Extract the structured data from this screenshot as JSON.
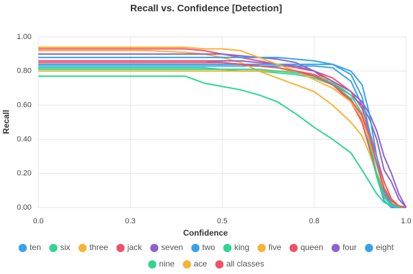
{
  "chart_data": {
    "type": "line",
    "title": "Recall vs. Confidence [Detection]",
    "x_label": "Confidence",
    "y_label": "Recall",
    "x": [
      0,
      0.1,
      0.2,
      0.3,
      0.4,
      0.45,
      0.5,
      0.55,
      0.6,
      0.65,
      0.7,
      0.75,
      0.8,
      0.85,
      0.88,
      0.9,
      0.92,
      0.94,
      0.96,
      0.98,
      1
    ],
    "xlim": [
      0,
      1
    ],
    "xticks": [
      {
        "value": 0,
        "label": "0.0"
      },
      {
        "value": 0.25,
        "label": "0.3"
      },
      0.5,
      {
        "value": 0.75,
        "label": "0.8"
      },
      {
        "value": 1,
        "label": "1.0"
      }
    ],
    "ylim": [
      0,
      1
    ],
    "yticks": [
      {
        "value": 0,
        "label": "0.00"
      },
      {
        "value": 0.2,
        "label": "0.20"
      },
      {
        "value": 0.4,
        "label": "0.40"
      },
      {
        "value": 0.6,
        "label": "0.60"
      },
      {
        "value": 0.8,
        "label": "0.80"
      },
      {
        "value": 1,
        "label": "1.00"
      }
    ],
    "grid": true,
    "legend": "bottom",
    "series": [
      {
        "name": "ten",
        "color": "#36a2eb",
        "values": [
          0.83,
          0.83,
          0.83,
          0.83,
          0.83,
          0.83,
          0.83,
          0.83,
          0.83,
          0.83,
          0.83,
          0.83,
          0.82,
          0.74,
          0.6,
          0.42,
          0.18,
          0.04,
          0,
          0,
          0
        ]
      },
      {
        "name": "six",
        "color": "#2ed68f",
        "values": [
          0.77,
          0.77,
          0.77,
          0.77,
          0.77,
          0.73,
          0.71,
          0.69,
          0.66,
          0.62,
          0.55,
          0.47,
          0.4,
          0.32,
          0.22,
          0.15,
          0.08,
          0.03,
          0.01,
          0,
          0
        ]
      },
      {
        "name": "three",
        "color": "#f9b233",
        "values": [
          0.92,
          0.92,
          0.92,
          0.92,
          0.91,
          0.9,
          0.88,
          0.85,
          0.8,
          0.76,
          0.72,
          0.68,
          0.6,
          0.5,
          0.42,
          0.32,
          0.2,
          0.1,
          0.03,
          0,
          0
        ]
      },
      {
        "name": "jack",
        "color": "#f2506a",
        "values": [
          0.93,
          0.93,
          0.93,
          0.93,
          0.93,
          0.92,
          0.9,
          0.88,
          0.86,
          0.84,
          0.82,
          0.8,
          0.76,
          0.68,
          0.58,
          0.45,
          0.3,
          0.15,
          0.05,
          0.01,
          0
        ]
      },
      {
        "name": "seven",
        "color": "#8c62d0",
        "values": [
          0.9,
          0.9,
          0.9,
          0.9,
          0.9,
          0.9,
          0.9,
          0.89,
          0.88,
          0.87,
          0.85,
          0.8,
          0.72,
          0.66,
          0.6,
          0.52,
          0.4,
          0.22,
          0.15,
          0.05,
          0
        ]
      },
      {
        "name": "two",
        "color": "#36a2eb",
        "values": [
          0.88,
          0.88,
          0.88,
          0.88,
          0.88,
          0.88,
          0.88,
          0.88,
          0.88,
          0.88,
          0.87,
          0.86,
          0.84,
          0.78,
          0.65,
          0.45,
          0.25,
          0.1,
          0.02,
          0,
          0
        ]
      },
      {
        "name": "king",
        "color": "#2ed68f",
        "values": [
          0.82,
          0.82,
          0.82,
          0.82,
          0.82,
          0.82,
          0.81,
          0.8,
          0.8,
          0.79,
          0.78,
          0.76,
          0.72,
          0.64,
          0.5,
          0.35,
          0.18,
          0.06,
          0.01,
          0,
          0
        ]
      },
      {
        "name": "five",
        "color": "#f9b233",
        "values": [
          0.8,
          0.8,
          0.8,
          0.8,
          0.8,
          0.8,
          0.8,
          0.8,
          0.8,
          0.8,
          0.8,
          0.78,
          0.74,
          0.66,
          0.55,
          0.4,
          0.25,
          0.1,
          0.02,
          0,
          0
        ]
      },
      {
        "name": "queen",
        "color": "#f2506a",
        "values": [
          0.85,
          0.85,
          0.85,
          0.85,
          0.85,
          0.85,
          0.85,
          0.84,
          0.83,
          0.82,
          0.8,
          0.78,
          0.72,
          0.62,
          0.5,
          0.35,
          0.2,
          0.08,
          0.02,
          0,
          0
        ]
      },
      {
        "name": "four",
        "color": "#8c62d0",
        "values": [
          0.86,
          0.86,
          0.86,
          0.86,
          0.86,
          0.86,
          0.86,
          0.86,
          0.85,
          0.84,
          0.83,
          0.8,
          0.74,
          0.68,
          0.62,
          0.55,
          0.45,
          0.3,
          0.2,
          0.08,
          0
        ]
      },
      {
        "name": "eight",
        "color": "#36a2eb",
        "values": [
          0.84,
          0.84,
          0.84,
          0.84,
          0.84,
          0.84,
          0.84,
          0.84,
          0.84,
          0.84,
          0.84,
          0.84,
          0.84,
          0.8,
          0.72,
          0.55,
          0.3,
          0.1,
          0.02,
          0,
          0
        ]
      },
      {
        "name": "nine",
        "color": "#2ed68f",
        "values": [
          0.81,
          0.81,
          0.81,
          0.81,
          0.81,
          0.81,
          0.81,
          0.81,
          0.81,
          0.8,
          0.79,
          0.77,
          0.73,
          0.66,
          0.55,
          0.38,
          0.2,
          0.07,
          0.01,
          0,
          0
        ]
      },
      {
        "name": "ace",
        "color": "#f9b233",
        "values": [
          0.94,
          0.94,
          0.94,
          0.94,
          0.94,
          0.93,
          0.93,
          0.92,
          0.88,
          0.84,
          0.8,
          0.75,
          0.7,
          0.62,
          0.52,
          0.4,
          0.25,
          0.12,
          0.04,
          0.01,
          0
        ]
      },
      {
        "name": "all classes",
        "color": "#f2506a",
        "values": [
          0.86,
          0.86,
          0.86,
          0.86,
          0.86,
          0.86,
          0.85,
          0.84,
          0.83,
          0.82,
          0.8,
          0.77,
          0.72,
          0.63,
          0.54,
          0.42,
          0.26,
          0.11,
          0.04,
          0.01,
          0
        ]
      }
    ]
  }
}
